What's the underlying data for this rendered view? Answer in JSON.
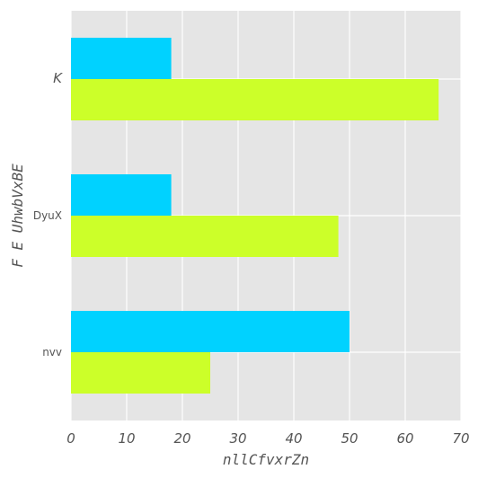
{
  "chart_data": {
    "type": "bar",
    "orientation": "horizontal",
    "categories": [
      "K",
      "DyuX",
      "nvv"
    ],
    "series": [
      {
        "color": "#00d2ff",
        "values": [
          18,
          18,
          50
        ]
      },
      {
        "color": "#ccff29",
        "values": [
          66,
          48,
          25
        ]
      }
    ],
    "xlabel": "nllCfvxrZn",
    "ylabel": "F E UhwbVxBE",
    "xlim": [
      0,
      70
    ],
    "xticks": [
      0,
      10,
      20,
      30,
      40,
      50,
      60,
      70
    ],
    "grid": true,
    "background": "#e5e5e5"
  }
}
